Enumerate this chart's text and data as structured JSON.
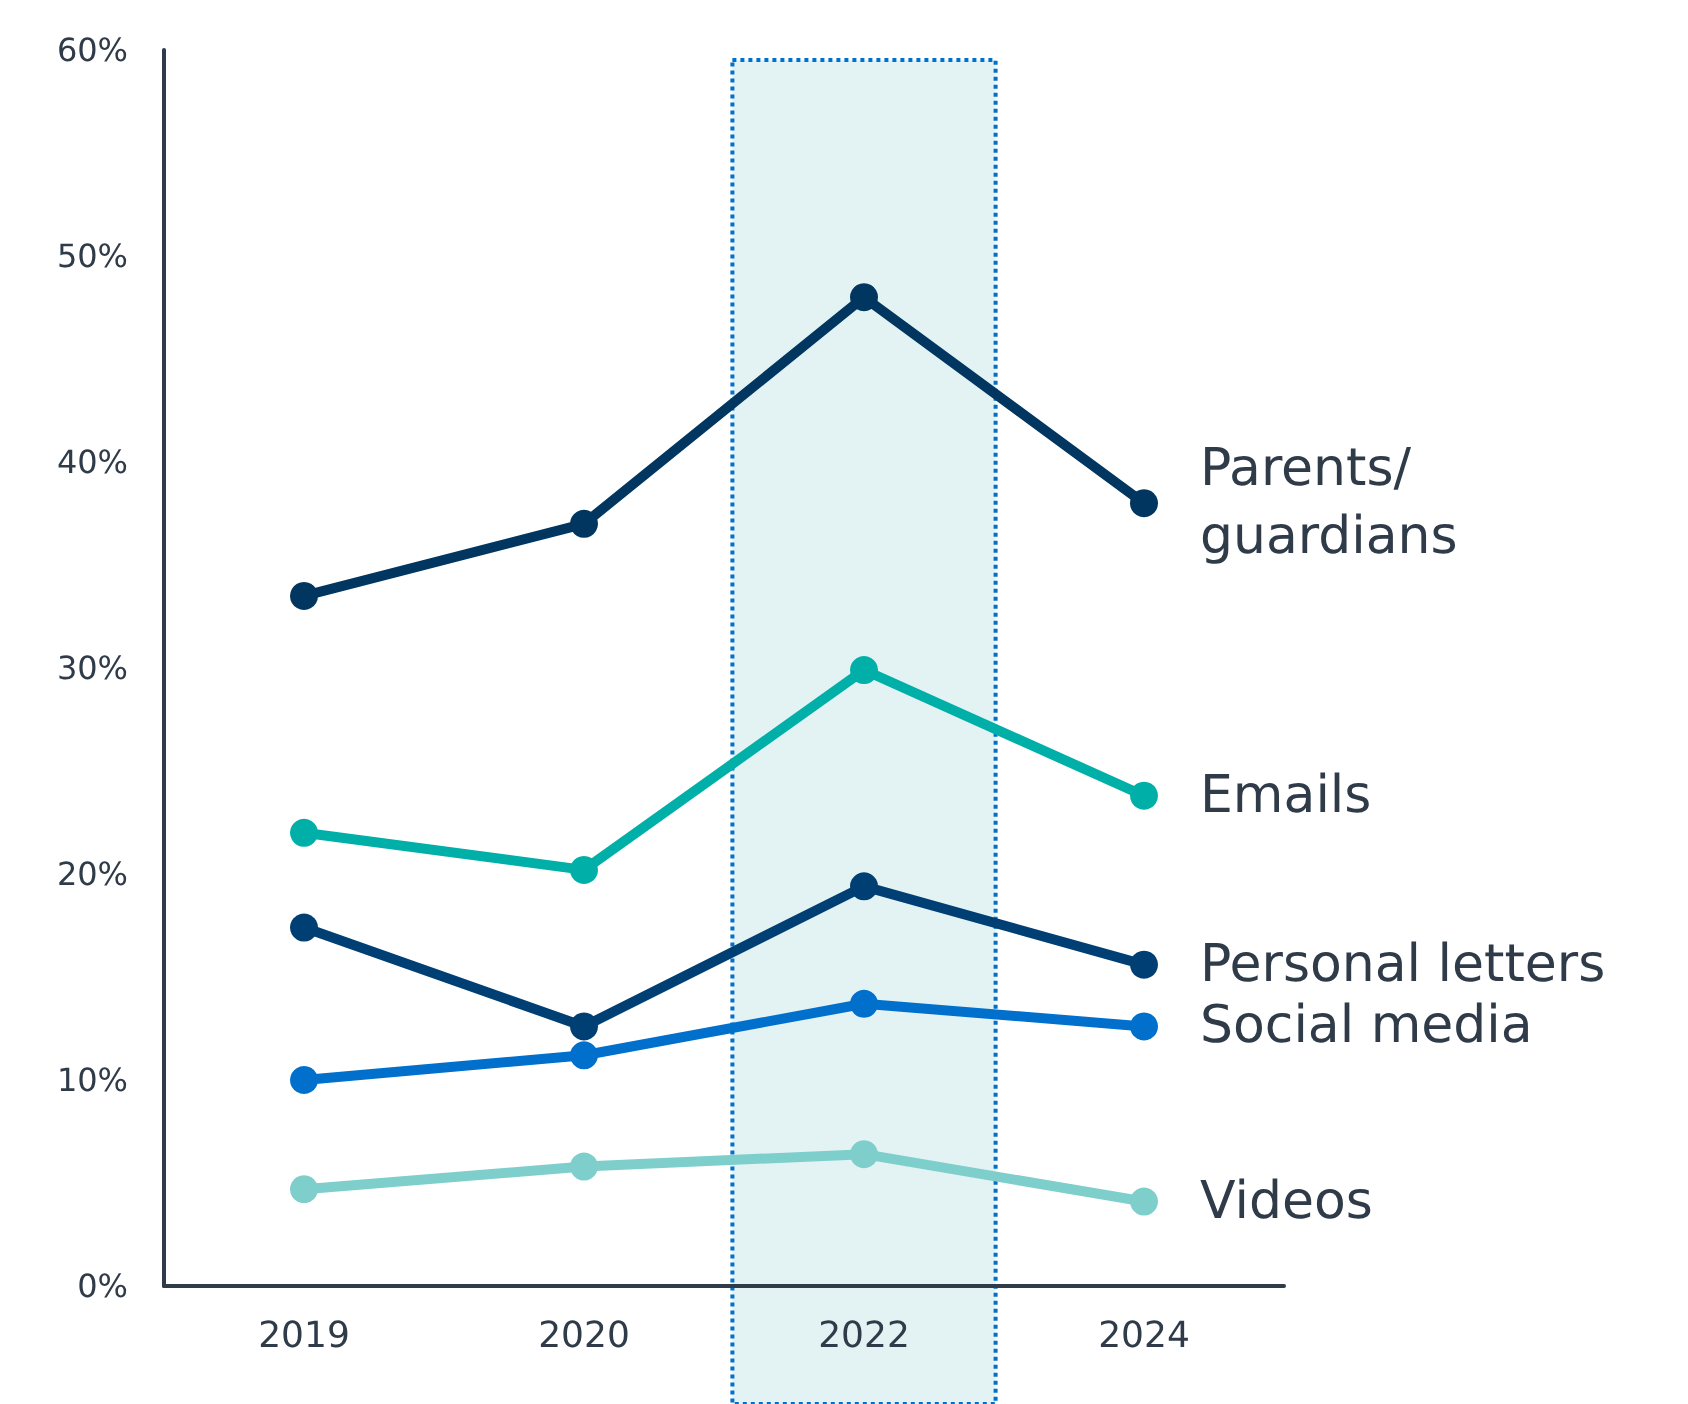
{
  "chart_data": {
    "type": "line",
    "categories": [
      "2019",
      "2020",
      "2022",
      "2024"
    ],
    "series": [
      {
        "name": "Parents/ guardians",
        "color": "#003660",
        "values": [
          33.5,
          37,
          48,
          38
        ]
      },
      {
        "name": "Emails",
        "color": "#00b0a8",
        "values": [
          22,
          20.2,
          29.9,
          23.8
        ]
      },
      {
        "name": "Personal letters",
        "color": "#003f73",
        "values": [
          17.4,
          12.6,
          19.4,
          15.6
        ]
      },
      {
        "name": "Social media",
        "color": "#0070cc",
        "values": [
          10,
          11.2,
          13.7,
          12.6
        ]
      },
      {
        "name": "Videos",
        "color": "#7ecfcc",
        "values": [
          4.7,
          5.8,
          6.4,
          4.1
        ]
      }
    ],
    "ylim": [
      0,
      60
    ],
    "yticks": [
      {
        "value": 0,
        "label": "0%"
      },
      {
        "value": 10,
        "label": "10%"
      },
      {
        "value": 20,
        "label": "20%"
      },
      {
        "value": 30,
        "label": "30%"
      },
      {
        "value": 40,
        "label": "40%"
      },
      {
        "value": 50,
        "label": "50%"
      },
      {
        "value": 60,
        "label": "60%"
      }
    ],
    "bands": [
      {
        "axis": "x",
        "from": "2022",
        "to": "2022",
        "color": "#e3f3f4"
      }
    ],
    "grid": false,
    "legend": false,
    "marker": "circle",
    "line_style": "solid"
  }
}
